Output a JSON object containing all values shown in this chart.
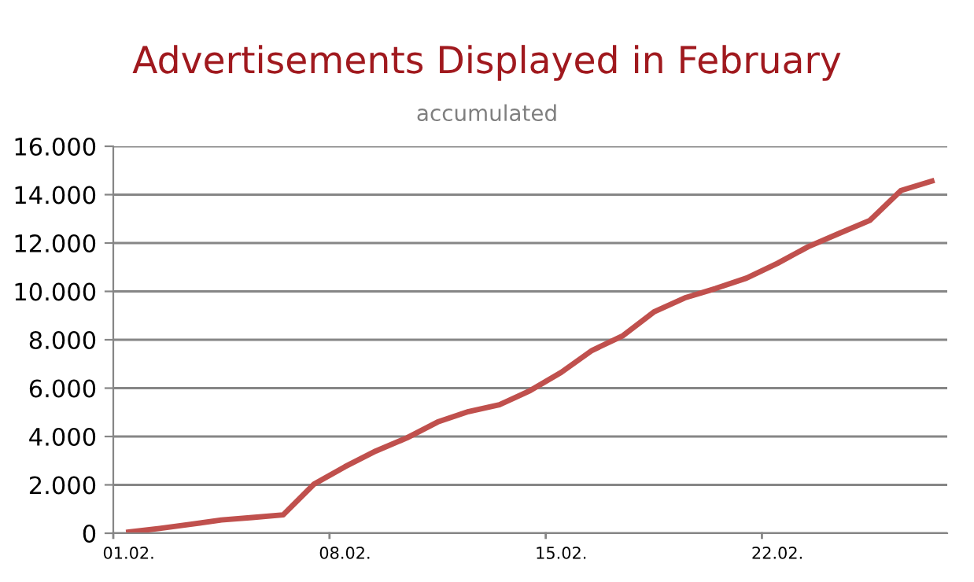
{
  "chart_data": {
    "type": "line",
    "title": "Advertisements Displayed in February",
    "subtitle": "accumulated",
    "categories": [
      "01.02.",
      null,
      null,
      null,
      null,
      null,
      null,
      "08.02.",
      null,
      null,
      null,
      null,
      null,
      null,
      "15.02.",
      null,
      null,
      null,
      null,
      null,
      null,
      "22.02.",
      null,
      null,
      null,
      null,
      null
    ],
    "series": [
      {
        "color": "#c0504d",
        "values": [
          50,
          200,
          370,
          550,
          650,
          760,
          2030,
          2750,
          3400,
          3940,
          4600,
          5030,
          5310,
          5900,
          6650,
          7560,
          8170,
          9150,
          9730,
          10120,
          10550,
          11160,
          11850,
          12400,
          12940,
          14170,
          14560
        ]
      }
    ],
    "ylim": [
      0,
      16000
    ],
    "yticks": [
      {
        "value": 0,
        "label": "0"
      },
      {
        "value": 2000,
        "label": "2.000"
      },
      {
        "value": 4000,
        "label": "4.000"
      },
      {
        "value": 6000,
        "label": "6.000"
      },
      {
        "value": 8000,
        "label": "8.000"
      },
      {
        "value": 10000,
        "label": "10.000"
      },
      {
        "value": 12000,
        "label": "12.000"
      },
      {
        "value": 14000,
        "label": "14.000"
      },
      {
        "value": 16000,
        "label": "16.000"
      }
    ],
    "grid": "y",
    "legend": false,
    "marker": "none",
    "line_style": "solid"
  }
}
